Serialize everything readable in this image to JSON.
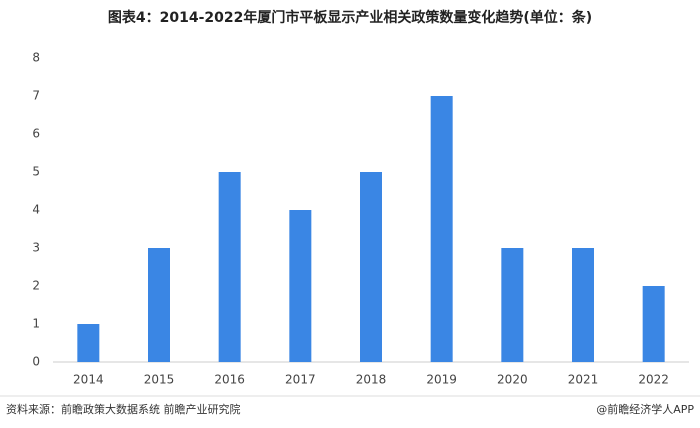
{
  "chart_data": {
    "type": "bar",
    "title": "图表4：2014-2022年厦门市平板显示产业相关政策数量变化趋势(单位：条)",
    "categories": [
      "2014",
      "2015",
      "2016",
      "2017",
      "2018",
      "2019",
      "2020",
      "2021",
      "2022"
    ],
    "values": [
      1,
      3,
      5,
      4,
      5,
      7,
      3,
      3,
      2
    ],
    "color": "#3a86e4",
    "ylim": [
      0,
      8
    ],
    "yticks": [
      0,
      1,
      2,
      3,
      4,
      5,
      6,
      7,
      8
    ],
    "grid": false,
    "source": "资料来源：前瞻政策大数据系统 前瞻产业研究院",
    "credit": "@前瞻经济学人APP"
  }
}
